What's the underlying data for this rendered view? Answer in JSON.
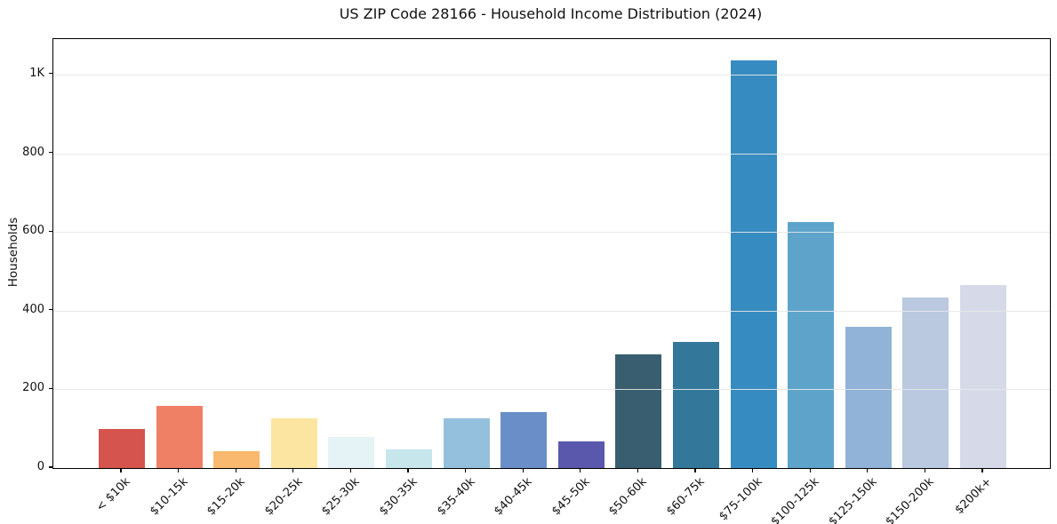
{
  "chart": {
    "title": "US ZIP Code 28166 - Household Income Distribution (2024)",
    "ylabel": "Households"
  },
  "chart_data": {
    "type": "bar",
    "title": "US ZIP Code 28166 - Household Income Distribution (2024)",
    "xlabel": "",
    "ylabel": "Households",
    "categories": [
      "< $10k",
      "$10-15k",
      "$15-20k",
      "$20-25k",
      "$25-30k",
      "$30-35k",
      "$35-40k",
      "$40-45k",
      "$45-50k",
      "$50-60k",
      "$60-75k",
      "$75-100k",
      "$100-125k",
      "$125-150k",
      "$150-200k",
      "$200k+"
    ],
    "values": [
      100,
      159,
      44,
      126,
      79,
      48,
      126,
      142,
      67,
      290,
      320,
      1035,
      625,
      358,
      433,
      465
    ],
    "bar_colors": [
      "#d6544e",
      "#f08065",
      "#f9b96f",
      "#fce5a0",
      "#e6f3f6",
      "#c7e6ec",
      "#95c0dd",
      "#6a8ec8",
      "#5a58ad",
      "#395e6f",
      "#33789a",
      "#368cc0",
      "#5ea4ca",
      "#90b3d7",
      "#bac8e0",
      "#d6d9e8"
    ],
    "ylim": [
      0,
      1090
    ],
    "yticks": [
      {
        "value": 0,
        "label": "0"
      },
      {
        "value": 200,
        "label": "200"
      },
      {
        "value": 400,
        "label": "400"
      },
      {
        "value": 600,
        "label": "600"
      },
      {
        "value": 800,
        "label": "800"
      },
      {
        "value": 1000,
        "label": "1K"
      }
    ],
    "grid": "horizontal-over-bars",
    "grid_color": "#e7e7e7",
    "legend": "none",
    "frame": true
  }
}
